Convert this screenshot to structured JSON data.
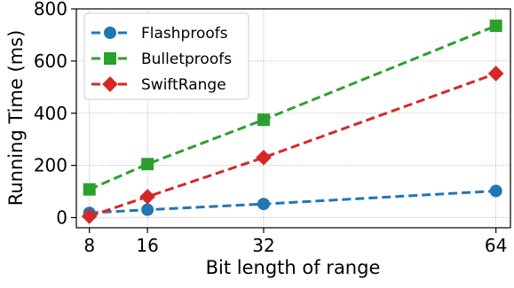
{
  "chart_data": {
    "type": "line",
    "xlabel": "Bit length of range",
    "ylabel": "Running Time (ms)",
    "x": [
      8,
      16,
      32,
      64
    ],
    "xticks": [
      "8",
      "16",
      "32",
      "64"
    ],
    "ylim": [
      0,
      800
    ],
    "yticks": [
      "0",
      "200",
      "400",
      "600",
      "800"
    ],
    "grid": true,
    "legend_position": "top-left",
    "series": [
      {
        "name": "Flashproofs",
        "values": [
          18,
          30,
          52,
          102
        ],
        "color": "#1f77b4",
        "marker": "circle"
      },
      {
        "name": "Bulletproofs",
        "values": [
          108,
          205,
          375,
          735
        ],
        "color": "#2ca02c",
        "marker": "square"
      },
      {
        "name": "SwiftRange",
        "values": [
          5,
          80,
          230,
          552
        ],
        "color": "#d62728",
        "marker": "diamond"
      }
    ]
  }
}
